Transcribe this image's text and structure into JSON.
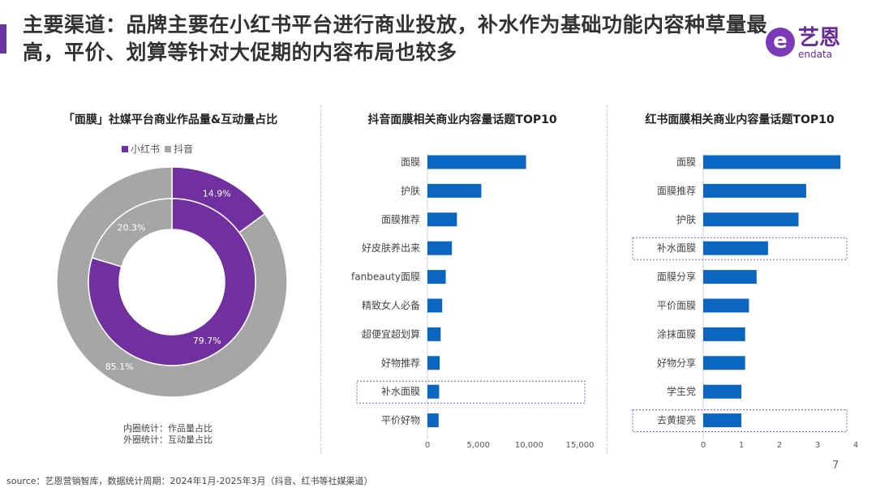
{
  "header": {
    "title": "主要渠道：品牌主要在小红书平台进行商业投放，补水作为基础功能内容种草量最高，平价、划算等针对大促期的内容布局也较多",
    "logo": {
      "cn": "艺恩",
      "en": "endata",
      "mark": "e"
    }
  },
  "colors": {
    "accent": "#7030a0",
    "xiaohongshu": "#7030a0",
    "douyin": "#a6a6a6",
    "bar": "#0b66c2",
    "highlight": "#8a5cb8"
  },
  "chart_data": [
    {
      "type": "pie",
      "variant": "double-donut",
      "title": "「面膜」社媒平台商业作品量&互动量占比",
      "legend": [
        "小红书",
        "抖音"
      ],
      "legend_position": "top",
      "inner": {
        "note": "内圈统计：作品量占比",
        "values": [
          {
            "name": "小红书",
            "value": 79.7,
            "label": "79.7%"
          },
          {
            "name": "抖音",
            "value": 20.3,
            "label": "20.3%"
          }
        ]
      },
      "outer": {
        "note": "外圈统计：互动量占比",
        "values": [
          {
            "name": "小红书",
            "value": 14.9,
            "label": "14.9%"
          },
          {
            "name": "抖音",
            "value": 85.1,
            "label": "85.1%"
          }
        ]
      }
    },
    {
      "type": "bar",
      "orientation": "horizontal",
      "title": "抖音面膜相关商业内容量话题TOP10",
      "categories": [
        "面膜",
        "护肤",
        "面膜推荐",
        "好皮肤养出来",
        "fanbeauty面膜",
        "精致女人必备",
        "超便宜超划算",
        "好物推荐",
        "补水面膜",
        "平价好物"
      ],
      "values": [
        9700,
        5300,
        2900,
        2400,
        1800,
        1450,
        1300,
        1200,
        1150,
        1100
      ],
      "xlim": [
        0,
        15000
      ],
      "ticks": [
        "0",
        "5,000",
        "10,000",
        "15,000"
      ],
      "tick_values": [
        0,
        5000,
        10000,
        15000
      ],
      "highlighted": [
        "补水面膜"
      ]
    },
    {
      "type": "bar",
      "orientation": "horizontal",
      "title": "红书面膜相关商业内容量话题TOP10",
      "categories": [
        "面膜",
        "面膜推荐",
        "护肤",
        "补水面膜",
        "面膜分享",
        "平价面膜",
        "涂抹面膜",
        "好物分享",
        "学生党",
        "去黄提亮"
      ],
      "values": [
        3.6,
        2.7,
        2.5,
        1.7,
        1.4,
        1.2,
        1.1,
        1.1,
        1.0,
        1.0
      ],
      "xlim": [
        0,
        4
      ],
      "ticks": [
        "0",
        "1",
        "2",
        "3",
        "4"
      ],
      "tick_values": [
        0,
        1,
        2,
        3,
        4
      ],
      "highlighted": [
        "补水面膜",
        "去黄提亮"
      ]
    }
  ],
  "footer": {
    "source": "source：艺恩营销智库，数据统计周期：2024年1月-2025年3月（抖音、红书等社媒渠道）",
    "page": "7"
  }
}
